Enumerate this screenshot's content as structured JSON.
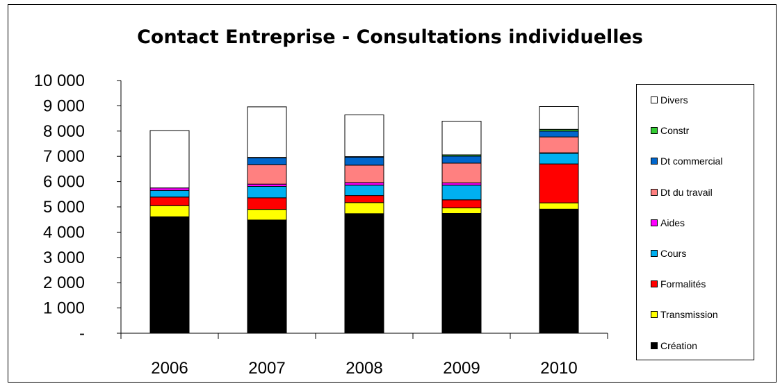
{
  "chart_data": {
    "type": "bar",
    "stacked": true,
    "title": "Contact Entreprise - Consultations individuelles",
    "categories": [
      "2006",
      "2007",
      "2008",
      "2009",
      "2010"
    ],
    "ylim": [
      0,
      10000
    ],
    "yticks": [
      {
        "value": 0,
        "label": "-"
      },
      {
        "value": 1000,
        "label": "1 000"
      },
      {
        "value": 2000,
        "label": "2 000"
      },
      {
        "value": 3000,
        "label": "3 000"
      },
      {
        "value": 4000,
        "label": "4 000"
      },
      {
        "value": 5000,
        "label": "5 000"
      },
      {
        "value": 6000,
        "label": "6 000"
      },
      {
        "value": 7000,
        "label": "7 000"
      },
      {
        "value": 8000,
        "label": "8 000"
      },
      {
        "value": 9000,
        "label": "9 000"
      },
      {
        "value": 10000,
        "label": "10 000"
      }
    ],
    "legend_position": "right",
    "series": [
      {
        "name": "Création",
        "color": "#000000",
        "values": [
          4610,
          4480,
          4730,
          4740,
          4910
        ]
      },
      {
        "name": "Transmission",
        "color": "#ffff00",
        "values": [
          440,
          420,
          440,
          220,
          250
        ]
      },
      {
        "name": "Formalités",
        "color": "#ff0000",
        "values": [
          340,
          460,
          280,
          320,
          1540
        ]
      },
      {
        "name": "Cours",
        "color": "#00b0f0",
        "values": [
          260,
          450,
          410,
          580,
          420
        ]
      },
      {
        "name": "Aides",
        "color": "#ff00ff",
        "values": [
          100,
          90,
          100,
          90,
          20
        ]
      },
      {
        "name": "Dt du travail",
        "color": "#ff8080",
        "values": [
          0,
          770,
          690,
          780,
          630
        ]
      },
      {
        "name": "Dt commercial",
        "color": "#0066cc",
        "values": [
          0,
          270,
          320,
          280,
          230
        ]
      },
      {
        "name": "Constr",
        "color": "#33cc33",
        "values": [
          0,
          20,
          20,
          50,
          70
        ]
      },
      {
        "name": "Divers",
        "color": "#ffffff",
        "values": [
          2270,
          2000,
          1650,
          1330,
          900
        ]
      }
    ]
  }
}
